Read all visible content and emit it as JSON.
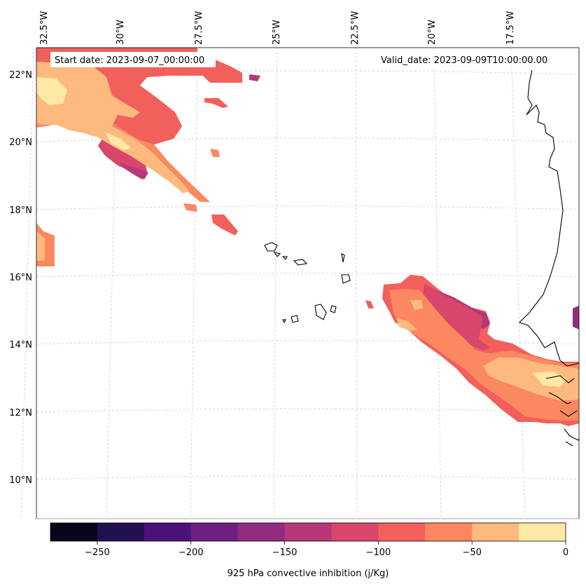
{
  "map": {
    "start_date": "Start date: 2023-09-07_00:00:00",
    "valid_date": "Valid_date: 2023-09-09T10:00:00.00",
    "lon_labels": [
      "32.5°W",
      "30°W",
      "27.5°W",
      "25°W",
      "22.5°W",
      "20°W",
      "17.5°W"
    ],
    "lat_labels": [
      "22°N",
      "20°N",
      "18°N",
      "16°N",
      "14°N",
      "12°N",
      "10°N"
    ]
  },
  "colorbar": {
    "label": "925 hPa convective inhibition (j/Kg)",
    "tick_labels": [
      "−250",
      "−200",
      "−150",
      "−100",
      "−50",
      "0"
    ],
    "levels": [
      -275,
      -250,
      -225,
      -200,
      -175,
      -150,
      -125,
      -100,
      -75,
      -50,
      -25,
      0
    ],
    "colors": [
      "#07061c",
      "#221150",
      "#4d117b",
      "#6f1f81",
      "#932b80",
      "#b73779",
      "#d9466b",
      "#f2605c",
      "#fb8861",
      "#fdb97e",
      "#fee8a5"
    ]
  },
  "colors": {
    "coast": "#000000",
    "grid": "#cccccc"
  }
}
